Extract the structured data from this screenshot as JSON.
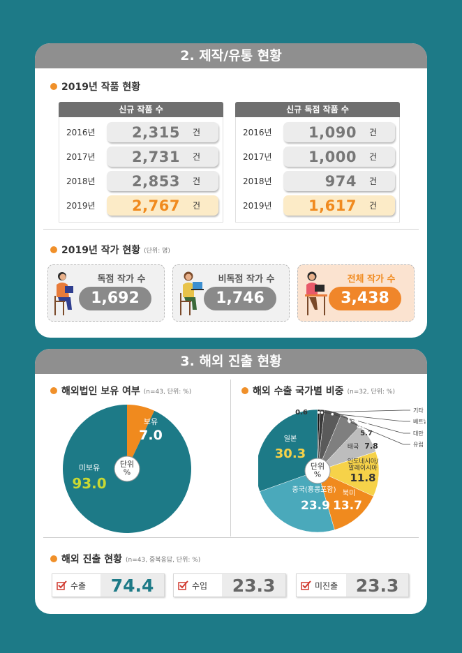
{
  "production": {
    "header": "2. 제작/유통 현황",
    "works_title": "2019년 작품 현황",
    "unit": "건",
    "new_works": {
      "header": "신규 작품 수",
      "rows": [
        {
          "year": "2016년",
          "value": "2,315"
        },
        {
          "year": "2017년",
          "value": "2,731"
        },
        {
          "year": "2018년",
          "value": "2,853"
        },
        {
          "year": "2019년",
          "value": "2,767"
        }
      ]
    },
    "exclusive_works": {
      "header": "신규 독점 작품 수",
      "rows": [
        {
          "year": "2016년",
          "value": "1,090"
        },
        {
          "year": "2017년",
          "value": "1,000"
        },
        {
          "year": "2018년",
          "value": "974"
        },
        {
          "year": "2019년",
          "value": "1,617"
        }
      ]
    },
    "authors_title": "2019년 작가 현황",
    "authors_note": "(단위: 명)",
    "authors": [
      {
        "label": "독점 작가 수",
        "value": "1,692"
      },
      {
        "label": "비독점 작가 수",
        "value": "1,746"
      },
      {
        "label": "전체 작가 수",
        "value": "3,438"
      }
    ]
  },
  "overseas": {
    "header": "3. 해외 진출 현황",
    "pie_center": "단위\n%",
    "export_title": "해외 진출 현황",
    "export_note": "(n=43, 중복응답, 단위: %)",
    "export": [
      {
        "label": "수출",
        "value": "74.4"
      },
      {
        "label": "수입",
        "value": "23.3"
      },
      {
        "label": "미진출",
        "value": "23.3"
      }
    ]
  },
  "colors": {
    "teal": "#1d7a87",
    "orange": "#f08a1e",
    "yellow": "#f6d249",
    "light_teal": "#4aa9bb",
    "green": "#c9d833"
  },
  "chart_data": [
    {
      "type": "pie",
      "title": "해외법인 보유 여부",
      "note": "(n=43, 단위: %)",
      "categories": [
        "보유",
        "미보유"
      ],
      "values": [
        7.0,
        93.0
      ],
      "labels": [
        "7.0",
        "93.0"
      ]
    },
    {
      "type": "pie",
      "title": "해외 수출 국가별 비중",
      "note": "(n=32, 단위: %)",
      "categories": [
        "기타",
        "베트남",
        "대만",
        "유럽",
        "태국",
        "인도네시아/\n말레이시아",
        "북미",
        "중국(홍콩포함)",
        "일본"
      ],
      "values": [
        0.6,
        1.2,
        4.5,
        5.7,
        7.8,
        11.8,
        13.7,
        23.9,
        30.3
      ],
      "labels": [
        "0.6",
        "1.2",
        "4.5",
        "5.7",
        "7.8",
        "11.8",
        "13.7",
        "23.9",
        "30.3"
      ]
    }
  ]
}
